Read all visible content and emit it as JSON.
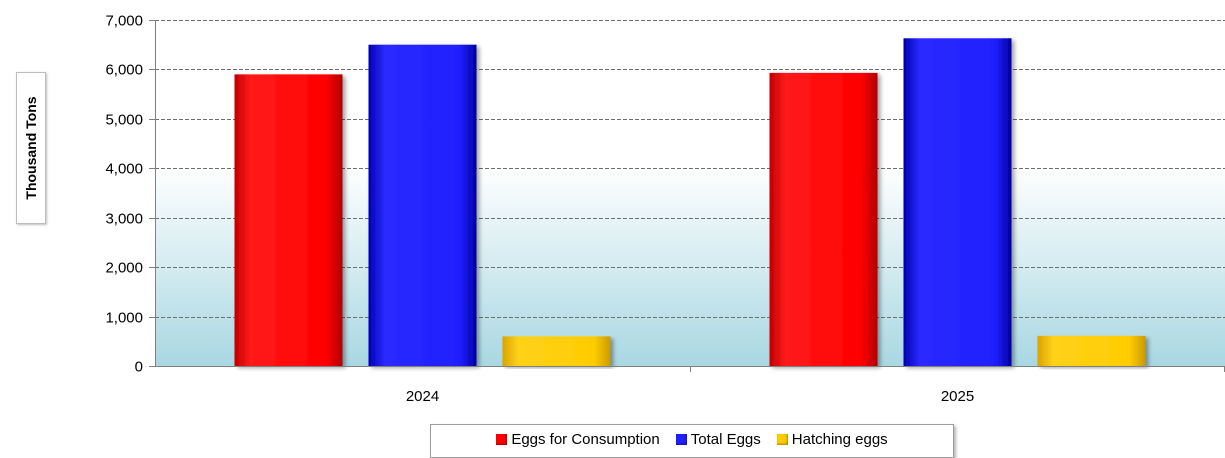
{
  "chart_data": {
    "type": "bar",
    "categories": [
      "2024",
      "2025"
    ],
    "series": [
      {
        "name": "Eggs for Consumption",
        "values": [
          5900,
          5930
        ],
        "color": "#ff0000"
      },
      {
        "name": "Total Eggs",
        "values": [
          6500,
          6630
        ],
        "color": "#1f1fff"
      },
      {
        "name": "Hatching eggs",
        "values": [
          600,
          610
        ],
        "color": "#ffcc00"
      }
    ],
    "ylabel": "Thousand Tons",
    "xlabel": "",
    "title": "",
    "ylim": [
      0,
      7000
    ],
    "yticks": [
      0,
      1000,
      2000,
      3000,
      4000,
      5000,
      6000,
      7000
    ],
    "ytick_labels": [
      "0",
      "1,000",
      "2,000",
      "3,000",
      "4,000",
      "5,000",
      "6,000",
      "7,000"
    ],
    "grid": "horizontal dashed",
    "legend_position": "bottom"
  }
}
